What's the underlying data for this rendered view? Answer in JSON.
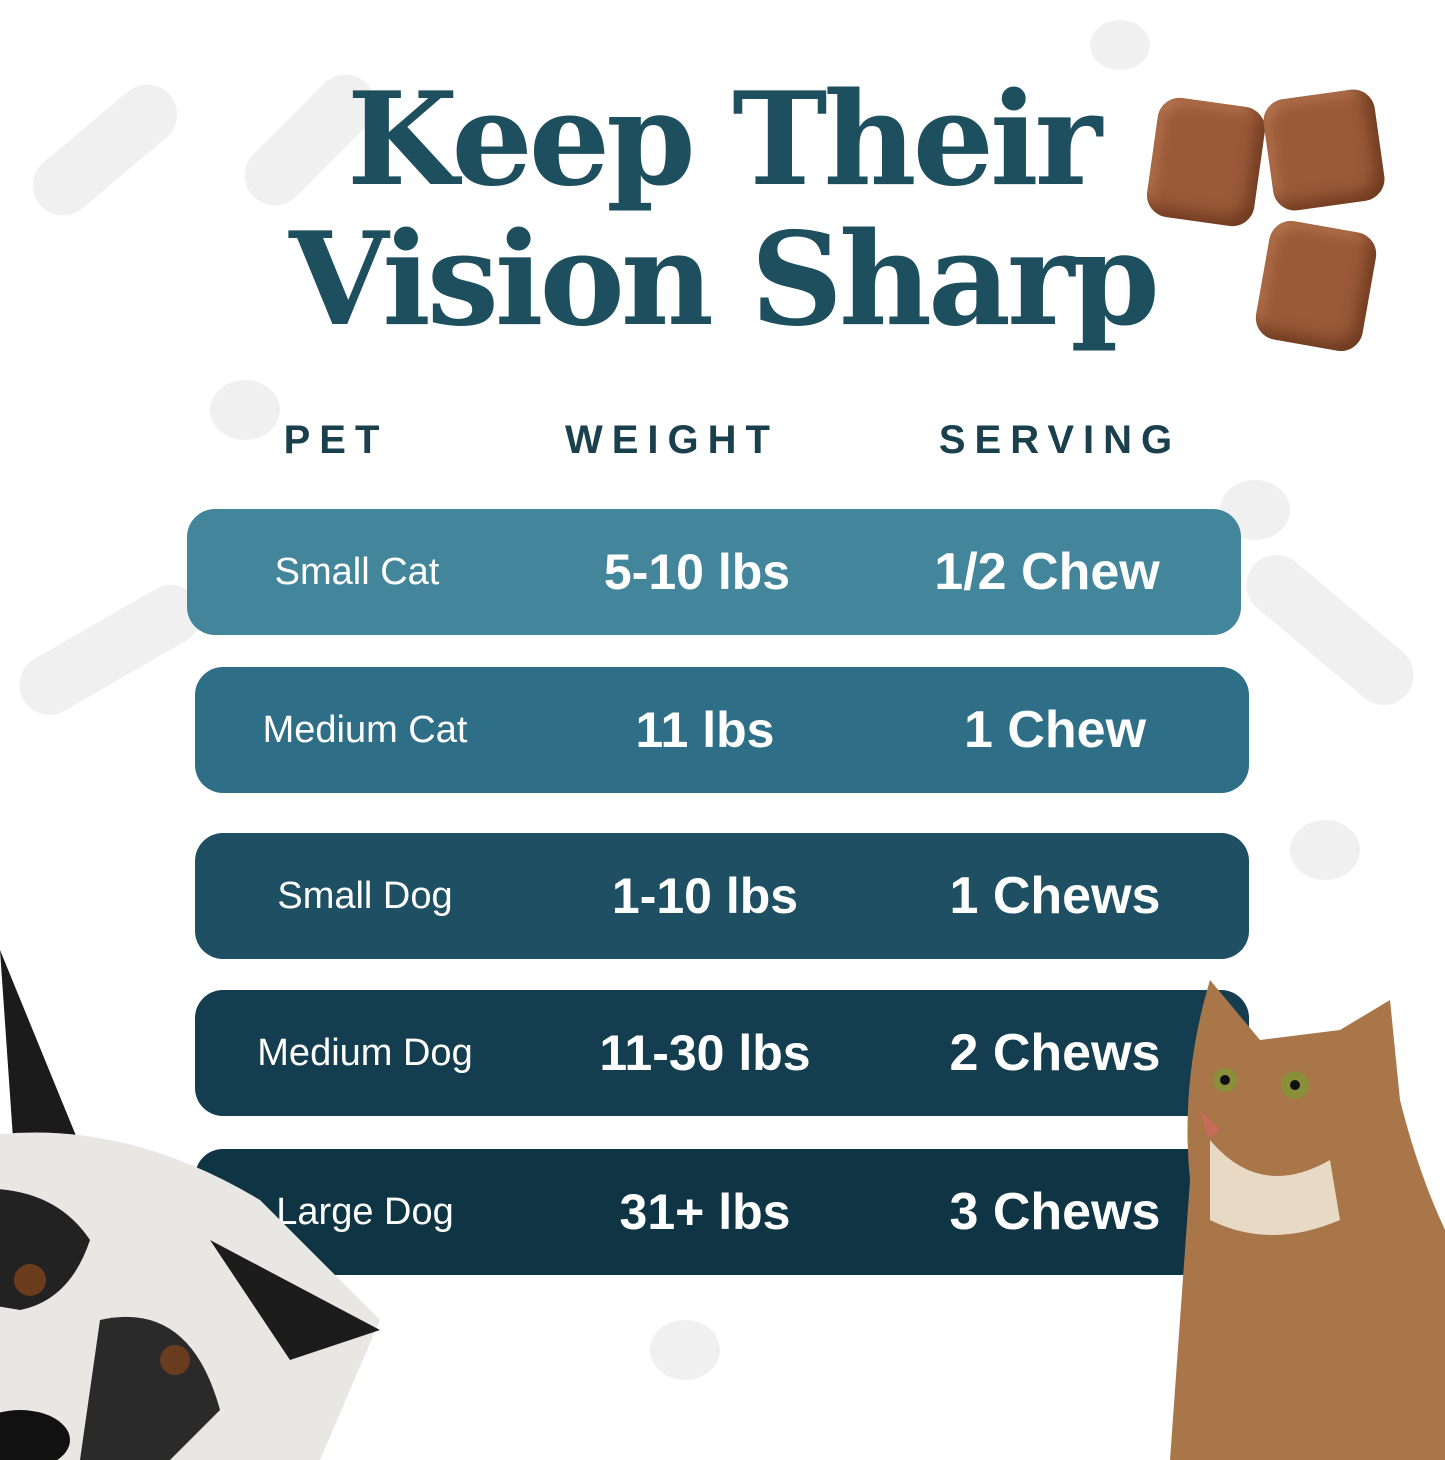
{
  "title": {
    "line1": "Keep Their",
    "line2": "Vision Sharp"
  },
  "headers": {
    "pet": "PET",
    "weight": "WEIGHT",
    "serving": "SERVING"
  },
  "rows": [
    {
      "pet": "Small Cat",
      "weight": "5-10 lbs",
      "serving": "1/2 Chew",
      "color": "#43869c"
    },
    {
      "pet": "Medium Cat",
      "weight": "11 lbs",
      "serving": "1 Chew",
      "color": "#2e6f87"
    },
    {
      "pet": "Small Dog",
      "weight": "1-10  lbs",
      "serving": "1 Chews",
      "color": "#1e4f62"
    },
    {
      "pet": "Medium Dog",
      "weight": "11-30  lbs",
      "serving": "2 Chews",
      "color": "#143e50"
    },
    {
      "pet": "Large Dog",
      "weight": "31+  lbs",
      "serving": "3 Chews",
      "color": "#0f3444"
    }
  ],
  "colors": {
    "title": "#1d4f5f",
    "background": "#ffffff",
    "pattern": "#f0f0f0",
    "chew": "#9a5a38"
  },
  "images": [
    "chews-photo",
    "dog-photo",
    "cat-photo"
  ]
}
